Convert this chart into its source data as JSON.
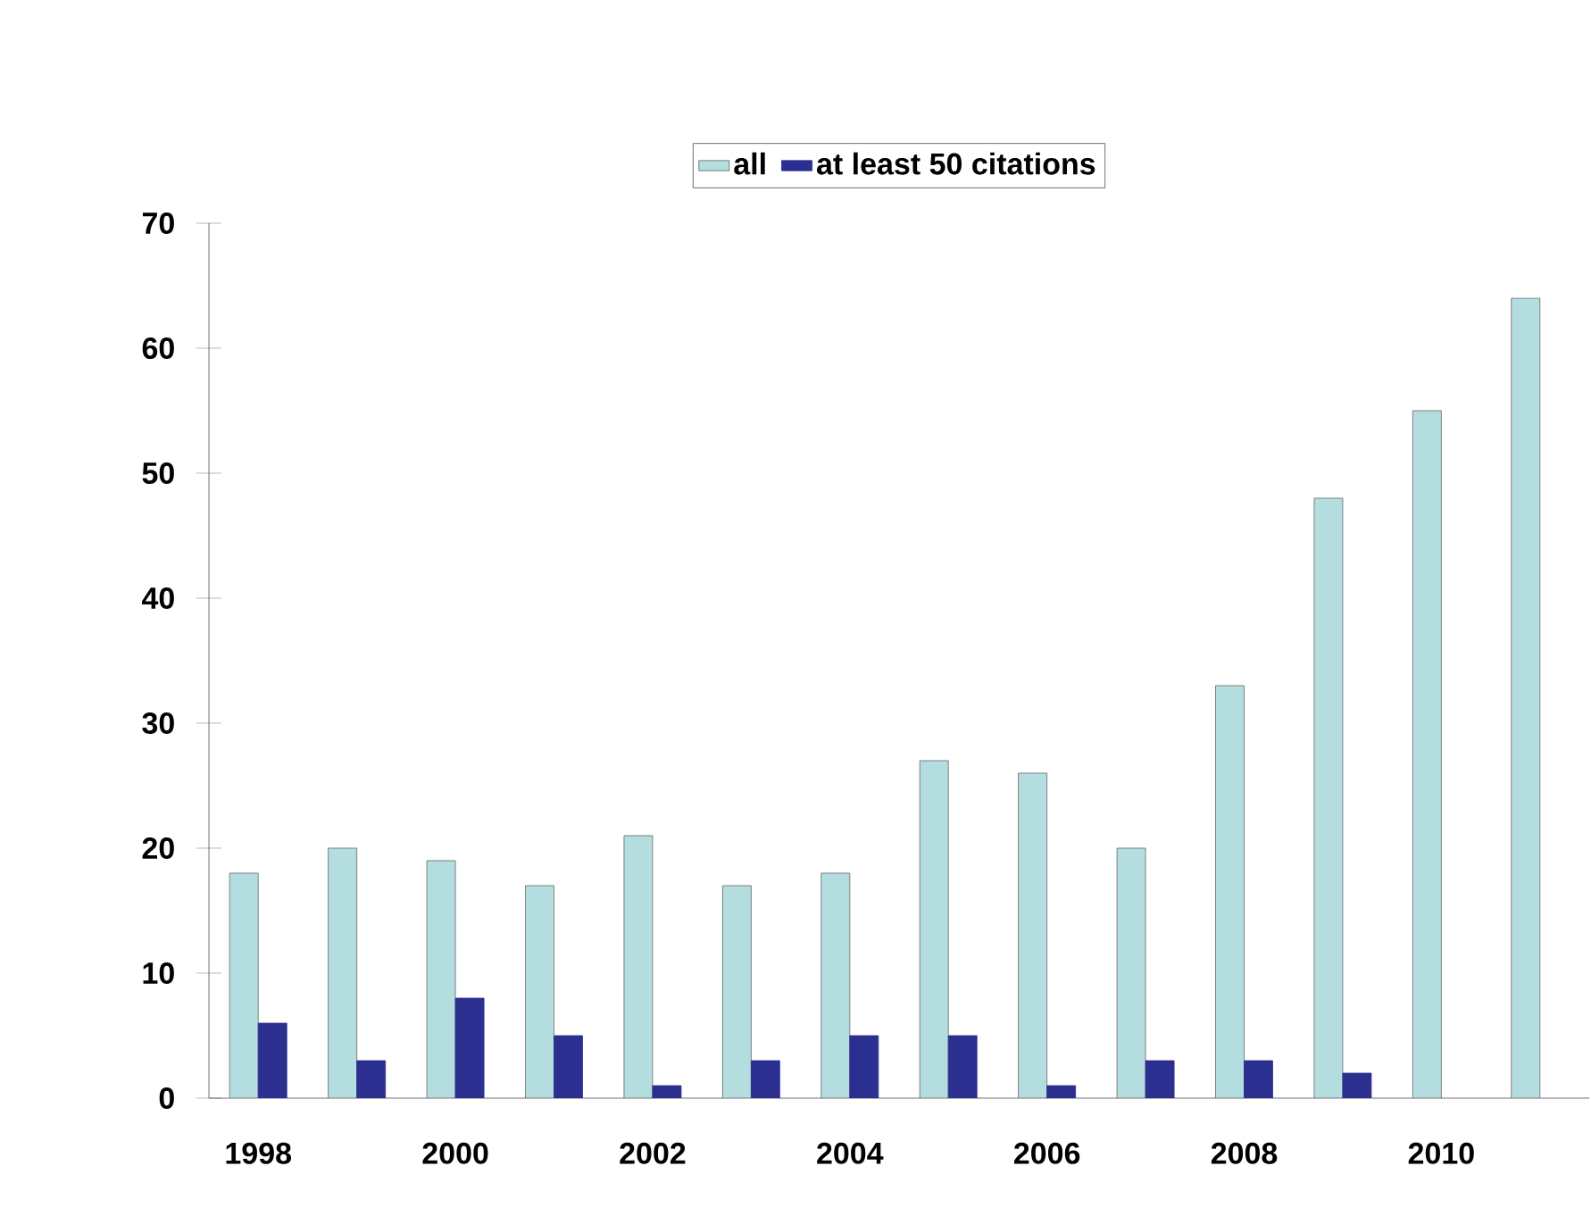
{
  "chart_data": {
    "type": "bar",
    "categories": [
      "1998",
      null,
      "2000",
      null,
      "2002",
      null,
      "2004",
      null,
      "2006",
      null,
      "2008",
      null,
      "2010",
      null
    ],
    "series": [
      {
        "name": "all",
        "color": "#b4dde0",
        "values": [
          18,
          20,
          19,
          17,
          21,
          17,
          18,
          27,
          26,
          20,
          33,
          48,
          55,
          64
        ]
      },
      {
        "name": "at least 50 citations",
        "color": "#2b2f8f",
        "values": [
          6,
          3,
          8,
          5,
          1,
          3,
          5,
          5,
          1,
          3,
          3,
          2,
          null,
          null
        ]
      }
    ],
    "ylim": [
      0,
      70
    ],
    "yticks": [
      0,
      10,
      20,
      30,
      40,
      50,
      60,
      70
    ],
    "grid": false,
    "legend": "top"
  }
}
